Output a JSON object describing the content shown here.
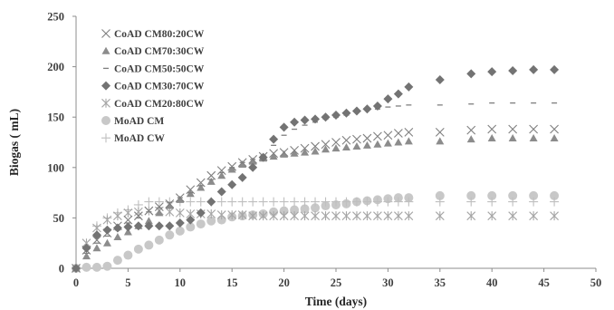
{
  "chart_data": {
    "type": "scatter",
    "title": "",
    "xlabel": "Time (days)",
    "ylabel": "Biogas ( mL)",
    "xlim": [
      0,
      50
    ],
    "ylim": [
      0,
      250
    ],
    "xticks": [
      "0",
      "5",
      "10",
      "15",
      "20",
      "25",
      "30",
      "35",
      "40",
      "45",
      "50"
    ],
    "yticks": [
      "0",
      "50",
      "100",
      "150",
      "200",
      "250"
    ],
    "grid": false,
    "legend_position": "top-left",
    "series": [
      {
        "name": "CoAD CM80:20CW",
        "marker": "x",
        "color": "#7f7f7f",
        "x": [
          0,
          1,
          2,
          3,
          4,
          5,
          6,
          7,
          8,
          9,
          10,
          11,
          12,
          13,
          14,
          15,
          16,
          17,
          18,
          19,
          20,
          21,
          22,
          23,
          24,
          25,
          26,
          27,
          28,
          29,
          30,
          31,
          32,
          35,
          38,
          40,
          42,
          44,
          46
        ],
        "y": [
          0,
          18,
          28,
          35,
          42,
          48,
          52,
          57,
          61,
          64,
          70,
          78,
          85,
          92,
          97,
          101,
          105,
          108,
          111,
          114,
          115,
          117,
          119,
          121,
          123,
          125,
          127,
          128,
          129,
          131,
          132,
          134,
          135,
          135,
          137,
          138,
          138,
          138,
          138
        ]
      },
      {
        "name": "CoAD CM70:30CW",
        "marker": "triangle",
        "color": "#8c8c8c",
        "x": [
          0,
          1,
          2,
          3,
          4,
          5,
          6,
          7,
          8,
          9,
          10,
          11,
          12,
          13,
          14,
          15,
          16,
          17,
          18,
          19,
          20,
          21,
          22,
          23,
          24,
          25,
          26,
          27,
          28,
          29,
          30,
          31,
          32,
          35,
          38,
          40,
          42,
          44,
          46
        ],
        "y": [
          0,
          12,
          20,
          25,
          31,
          36,
          42,
          47,
          55,
          62,
          68,
          74,
          80,
          86,
          92,
          98,
          103,
          106,
          109,
          111,
          113,
          114,
          115,
          116,
          118,
          119,
          120,
          121,
          122,
          123,
          124,
          125,
          126,
          126,
          128,
          129,
          129,
          129,
          129
        ]
      },
      {
        "name": "CoAD CM50:50CW",
        "marker": "dash",
        "color": "#7f7f7f",
        "x": [
          0,
          1,
          2,
          3,
          4,
          5,
          6,
          7,
          8,
          9,
          10,
          11,
          12,
          13,
          14,
          15,
          16,
          17,
          18,
          19,
          20,
          21,
          22,
          23,
          24,
          25,
          26,
          27,
          28,
          29,
          30,
          31,
          32,
          35,
          38,
          40,
          42,
          44,
          46
        ],
        "y": [
          0,
          15,
          25,
          32,
          38,
          45,
          50,
          56,
          60,
          65,
          70,
          75,
          82,
          88,
          95,
          100,
          105,
          108,
          112,
          122,
          132,
          138,
          142,
          145,
          148,
          150,
          152,
          155,
          157,
          158,
          160,
          161,
          162,
          162,
          163,
          164,
          164,
          164,
          164
        ]
      },
      {
        "name": "CoAD CM30:70CW",
        "marker": "diamond",
        "color": "#737373",
        "x": [
          0,
          1,
          2,
          3,
          4,
          5,
          6,
          7,
          8,
          9,
          10,
          11,
          12,
          13,
          14,
          15,
          16,
          17,
          18,
          19,
          20,
          21,
          22,
          23,
          24,
          25,
          26,
          27,
          28,
          29,
          30,
          31,
          32,
          35,
          38,
          40,
          42,
          44,
          46
        ],
        "y": [
          0,
          20,
          33,
          38,
          40,
          41,
          42,
          42,
          42,
          42,
          45,
          48,
          55,
          66,
          76,
          83,
          90,
          100,
          110,
          128,
          140,
          145,
          147,
          148,
          150,
          152,
          154,
          156,
          158,
          161,
          168,
          173,
          180,
          187,
          193,
          195,
          196,
          197,
          197
        ]
      },
      {
        "name": "CoAD CM20:80CW",
        "marker": "asterisk",
        "color": "#a6a6a6",
        "x": [
          0,
          1,
          2,
          3,
          4,
          5,
          6,
          7,
          8,
          9,
          10,
          11,
          12,
          13,
          14,
          15,
          16,
          17,
          18,
          19,
          20,
          21,
          22,
          23,
          24,
          25,
          26,
          27,
          28,
          29,
          30,
          31,
          32,
          35,
          38,
          40,
          42,
          44,
          46
        ],
        "y": [
          0,
          25,
          40,
          48,
          52,
          55,
          56,
          57,
          57,
          56,
          55,
          54,
          54,
          54,
          53,
          53,
          53,
          52,
          52,
          52,
          52,
          52,
          52,
          52,
          52,
          52,
          52,
          52,
          52,
          52,
          52,
          52,
          52,
          52,
          52,
          52,
          52,
          52,
          52
        ]
      },
      {
        "name": "MoAD CM",
        "marker": "circle",
        "color": "#c8c8c8",
        "x": [
          0,
          1,
          2,
          3,
          4,
          5,
          6,
          7,
          8,
          9,
          10,
          11,
          12,
          13,
          14,
          15,
          16,
          17,
          18,
          19,
          20,
          21,
          22,
          23,
          24,
          25,
          26,
          27,
          28,
          29,
          30,
          31,
          32,
          35,
          38,
          40,
          42,
          44,
          46
        ],
        "y": [
          0,
          1,
          1,
          2,
          8,
          13,
          19,
          23,
          28,
          33,
          37,
          41,
          44,
          47,
          48,
          51,
          52,
          53,
          54,
          56,
          57,
          58,
          59,
          60,
          62,
          63,
          64,
          66,
          67,
          68,
          69,
          70,
          70,
          72,
          72,
          72,
          72,
          72,
          72
        ]
      },
      {
        "name": "MoAD CW",
        "marker": "plus",
        "color": "#bfbfbf",
        "x": [
          0,
          1,
          2,
          3,
          4,
          5,
          6,
          7,
          8,
          9,
          10,
          11,
          12,
          13,
          14,
          15,
          16,
          17,
          18,
          19,
          20,
          21,
          22,
          23,
          24,
          25,
          26,
          27,
          28,
          29,
          30,
          31,
          32,
          35,
          38,
          40,
          42,
          44,
          46
        ],
        "y": [
          0,
          22,
          42,
          50,
          55,
          58,
          63,
          66,
          66,
          66,
          66,
          66,
          66,
          66,
          66,
          66,
          66,
          66,
          66,
          66,
          66,
          66,
          66,
          66,
          66,
          66,
          66,
          66,
          66,
          66,
          66,
          66,
          66,
          66,
          66,
          66,
          66,
          66,
          66
        ]
      }
    ]
  }
}
